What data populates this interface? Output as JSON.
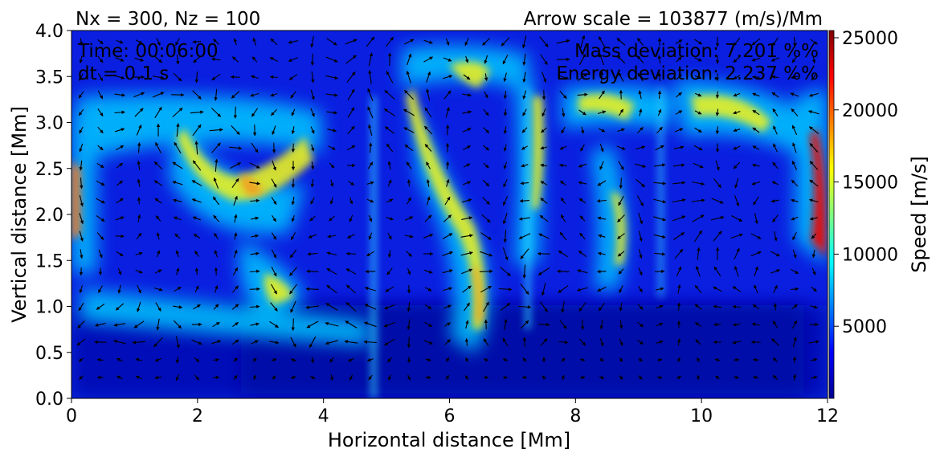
{
  "chart_data": {
    "type": "heatmap",
    "subtype": "speed-field-with-velocity-arrows",
    "title_left": "Nx = 300, Nz = 100",
    "title_right": "Arrow scale = 103877 (m/s)/Mm",
    "xlabel": "Horizontal distance [Mm]",
    "ylabel": "Vertical distance [Mm]",
    "xlim": [
      0,
      12
    ],
    "ylim": [
      0,
      4
    ],
    "x_ticks": [
      0,
      2,
      4,
      6,
      8,
      10,
      12
    ],
    "y_ticks": [
      0.0,
      0.5,
      1.0,
      1.5,
      2.0,
      2.5,
      3.0,
      3.5,
      4.0
    ],
    "y_tick_labels": [
      "0.0",
      "0.5",
      "1.0",
      "1.5",
      "2.0",
      "2.5",
      "3.0",
      "3.5",
      "4.0"
    ],
    "colormap": "jet",
    "colorbar": {
      "label": "Speed [m/s]",
      "range": [
        0,
        25500
      ],
      "ticks": [
        5000,
        10000,
        15000,
        20000,
        25000
      ]
    },
    "annotations": {
      "time": "Time: 00:06:00",
      "dt": "dt = 0.1 s",
      "mass": "Mass deviation: 7.201 %%",
      "energy": "Energy deviation: 2.237 %%"
    },
    "colors": {
      "arrow": "#000000",
      "background": "#00008f"
    }
  }
}
